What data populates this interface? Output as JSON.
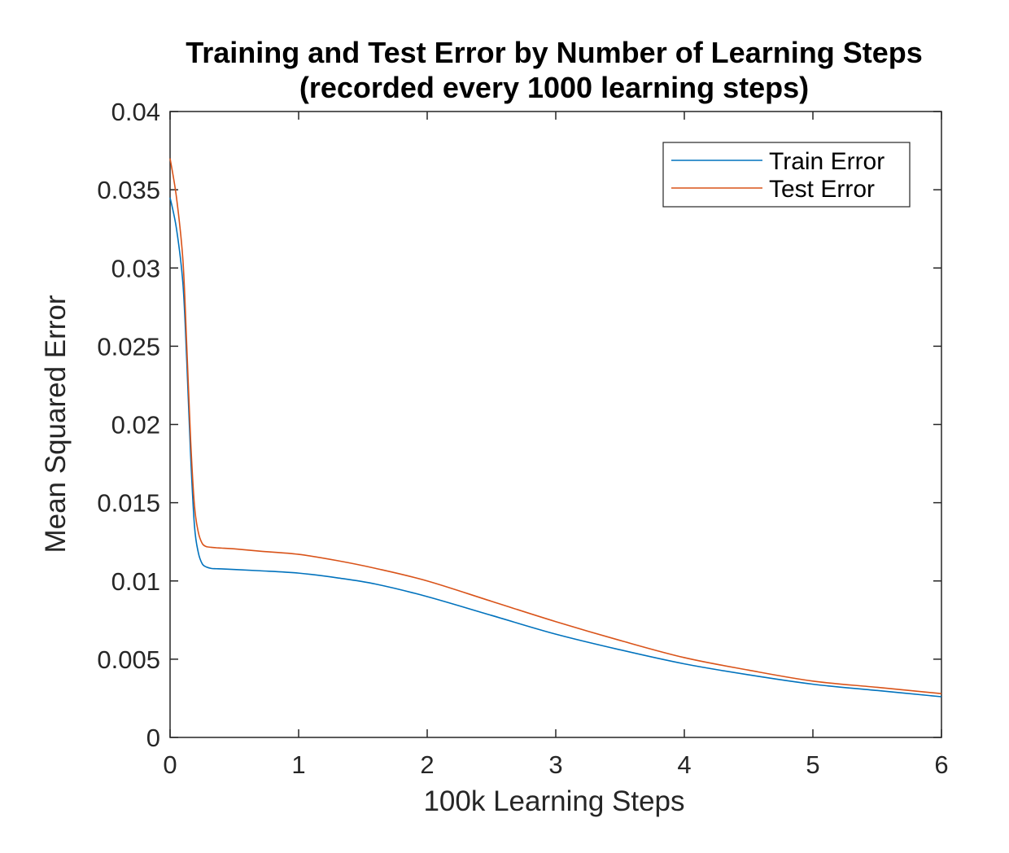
{
  "chart_data": {
    "type": "line",
    "title": "Training and Test Error by Number of Learning Steps",
    "subtitle": "(recorded every 1000 learning steps)",
    "xlabel": "100k Learning Steps",
    "ylabel": "Mean Squared Error",
    "xlim": [
      0,
      6
    ],
    "ylim": [
      0,
      0.04
    ],
    "xticks": [
      "0",
      "1",
      "2",
      "3",
      "4",
      "5",
      "6"
    ],
    "yticks": [
      "0",
      "0.005",
      "0.01",
      "0.015",
      "0.02",
      "0.025",
      "0.03",
      "0.035",
      "0.04"
    ],
    "grid": false,
    "legend_position": "top-right",
    "series": [
      {
        "name": "Train Error",
        "color": "#0072bd",
        "x": [
          0,
          0.05,
          0.1,
          0.13,
          0.16,
          0.19,
          0.22,
          0.25,
          0.28,
          0.32,
          0.36,
          0.4,
          0.5,
          0.7,
          1.0,
          1.3,
          1.6,
          2.0,
          2.5,
          3.0,
          3.5,
          4.0,
          4.5,
          5.0,
          5.5,
          6.0
        ],
        "y": [
          0.0345,
          0.0325,
          0.029,
          0.024,
          0.018,
          0.0135,
          0.0118,
          0.0111,
          0.0109,
          0.0108,
          0.01078,
          0.01077,
          0.01073,
          0.01065,
          0.0105,
          0.0102,
          0.0098,
          0.009,
          0.0078,
          0.0066,
          0.0056,
          0.0047,
          0.004,
          0.0034,
          0.003,
          0.0026
        ]
      },
      {
        "name": "Test Error",
        "color": "#d95319",
        "x": [
          0,
          0.05,
          0.1,
          0.13,
          0.16,
          0.19,
          0.22,
          0.25,
          0.28,
          0.32,
          0.36,
          0.4,
          0.5,
          0.7,
          1.0,
          1.3,
          1.6,
          2.0,
          2.5,
          3.0,
          3.5,
          4.0,
          4.5,
          5.0,
          5.5,
          6.0
        ],
        "y": [
          0.037,
          0.0345,
          0.0305,
          0.025,
          0.019,
          0.0148,
          0.0131,
          0.0124,
          0.0122,
          0.01215,
          0.01212,
          0.0121,
          0.01205,
          0.0119,
          0.0117,
          0.0113,
          0.0108,
          0.01,
          0.0087,
          0.0074,
          0.0062,
          0.0051,
          0.0043,
          0.0036,
          0.0032,
          0.0028
        ]
      }
    ]
  }
}
